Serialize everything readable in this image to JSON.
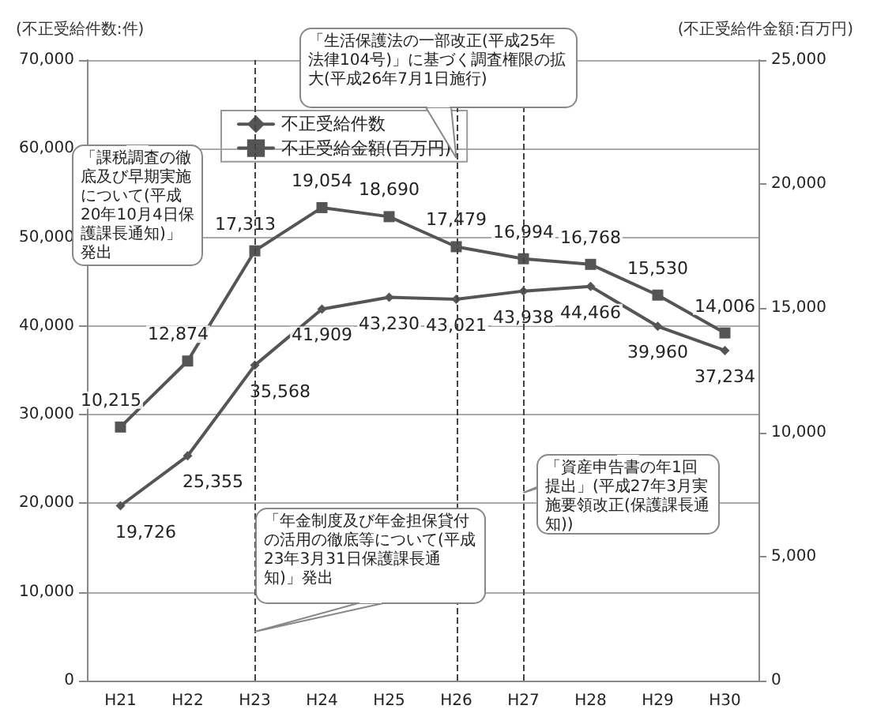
{
  "chart_data": {
    "type": "line",
    "ylabel": "(不正受給件数:件)",
    "y2label": "(不正受給件金額:百万円)",
    "categories": [
      "H21",
      "H22",
      "H23",
      "H24",
      "H25",
      "H26",
      "H27",
      "H28",
      "H29",
      "H30"
    ],
    "series": [
      {
        "name": "不正受給件数",
        "color": "#555555",
        "marker": "diamond",
        "values": [
          19726,
          25355,
          35568,
          41909,
          43230,
          43021,
          43938,
          44466,
          39960,
          37234
        ],
        "value_labels": [
          "19,726",
          "25,355",
          "35,568",
          "41,909",
          "43,230",
          "43,021",
          "43,938",
          "44,466",
          "39,960",
          "37,234"
        ]
      },
      {
        "name": "不正受給金額(百万円)",
        "color": "#555555",
        "marker": "square",
        "axis": "y2",
        "values": [
          10215,
          12874,
          17313,
          19054,
          18690,
          17479,
          16994,
          16768,
          15530,
          14006
        ],
        "value_labels": [
          "10,215",
          "12,874",
          "17,313",
          "19,054",
          "18,690",
          "17,479",
          "16,994",
          "16,768",
          "15,530",
          "14,006"
        ]
      }
    ],
    "ylim": [
      0,
      70000
    ],
    "yticks": [
      0,
      {
        "value": 10000,
        "label": "10,000"
      },
      {
        "value": 20000,
        "label": "20,000"
      },
      {
        "value": 30000,
        "label": "30,000"
      },
      {
        "value": 40000,
        "label": "40,000"
      },
      {
        "value": 50000,
        "label": "50,000"
      },
      {
        "value": 60000,
        "label": "60,000"
      },
      {
        "value": 70000,
        "label": "70,000"
      }
    ],
    "y2lim": [
      0,
      25000
    ],
    "y2ticks": [
      0,
      {
        "value": 5000,
        "label": "5,000"
      },
      {
        "value": 10000,
        "label": "10,000"
      },
      {
        "value": 15000,
        "label": "15,000"
      },
      {
        "value": 20000,
        "label": "20,000"
      },
      {
        "value": 25000,
        "label": "25,000"
      }
    ],
    "grid": "y",
    "legend": "top left",
    "line_style": "solid",
    "ref_lines": [
      {
        "axis": "x",
        "value": "H26",
        "line_style": "dashed",
        "label": "「生活保護法の一部改正(平成25年法律104号)」に基づく調査権限の拡大(平成26年7月1日施行)"
      },
      {
        "axis": "x",
        "value": "H23",
        "line_style": "dashed",
        "label": "「年金制度及び年金担保貸付の活用の徹底等について(平成23年3月31日保護課長通知)」発出"
      },
      {
        "axis": "x",
        "value": "H27",
        "line_style": "dashed",
        "label": "「資産申告書の年1回提出」(平成27年3月実施要領改正(保護課長通知))"
      }
    ],
    "annotations": [
      "「課税調査の徹底及び早期実施について(平成20年10月4日保護課長通知)」発出"
    ]
  }
}
